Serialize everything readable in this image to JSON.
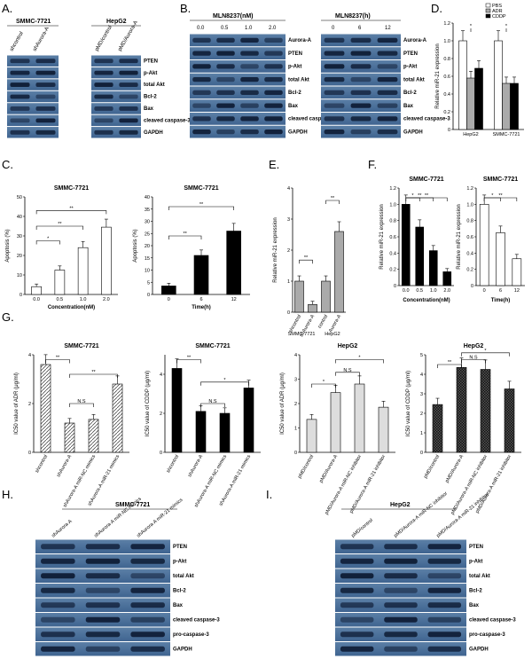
{
  "panel_labels": {
    "A": "A.",
    "B": "B.",
    "C": "C.",
    "D": "D.",
    "E": "E.",
    "F": "F.",
    "G": "G.",
    "H": "H.",
    "I": "I."
  },
  "panelA": {
    "cell_left": "SMMC-7721",
    "cell_right": "HepG2",
    "lanes_left": [
      "shcontrol",
      "shAurora-A"
    ],
    "lanes_right": [
      "pMD/control",
      "pMD/Aurora-A"
    ],
    "rows": [
      "PTEN",
      "p-Akt",
      "total Akt",
      "Bcl-2",
      "Bax",
      "cleaved caspase-3",
      "GAPDH"
    ]
  },
  "panelB": {
    "title_left": "MLN8237(nM)",
    "title_right": "MLN8237(h)",
    "doses": [
      "0.0",
      "0.5",
      "1.0",
      "2.0"
    ],
    "times": [
      "0",
      "6",
      "12"
    ],
    "rows": [
      "Aurora-A",
      "PTEN",
      "p-Akt",
      "total Akt",
      "Bcl-2",
      "Bax",
      "cleaved caspase-3",
      "GAPDH"
    ]
  },
  "panelH": {
    "title": "SMMC-7721",
    "lanes": [
      "shAurora-A",
      "shAurora-A miR-NC mimics",
      "shAurora-A miR-21 mimics"
    ],
    "rows": [
      "PTEN",
      "p-Akt",
      "total Akt",
      "Bcl-2",
      "Bax",
      "cleaved caspase-3",
      "pro-caspase-3",
      "GAPDH"
    ]
  },
  "panelI": {
    "title": "HepG2",
    "lanes": [
      "pMD/control",
      "pMD/Aurora-A miR-NC inhibitor",
      "pMD/Aurora-A miR-21 inhibitor"
    ],
    "rows": [
      "PTEN",
      "p-Akt",
      "total Akt",
      "Bcl-2",
      "Bax",
      "cleaved caspase-3",
      "pro-caspase-3",
      "GAPDH"
    ]
  },
  "sig": {
    "one": "*",
    "two": "**",
    "ns": "N.S"
  },
  "chart_data": [
    {
      "id": "D",
      "type": "bar",
      "ylabel": "Relative miR-21 expression",
      "ylim": [
        0,
        1.2
      ],
      "yticks": [
        "0",
        "0.2",
        "0.4",
        "0.6",
        "0.8",
        "1.0",
        "1.2"
      ],
      "categories": [
        "HepG2",
        "SMMC-7721"
      ],
      "series": [
        {
          "name": "PBS",
          "values": [
            1.0,
            1.0
          ]
        },
        {
          "name": "ADR",
          "values": [
            0.58,
            0.52
          ]
        },
        {
          "name": "CDDP",
          "values": [
            0.69,
            0.52
          ]
        }
      ]
    },
    {
      "id": "C1",
      "type": "bar",
      "title": "SMMC-7721",
      "xlabel": "Concentration(nM)",
      "ylabel": "Apoptosis (%)",
      "ylim": [
        0,
        50
      ],
      "yticks": [
        "0",
        "10",
        "20",
        "30",
        "40",
        "50"
      ],
      "categories": [
        "0.0",
        "0.5",
        "1.0",
        "2.0"
      ],
      "values": [
        4,
        12.5,
        24,
        34.5
      ]
    },
    {
      "id": "C2",
      "type": "bar",
      "title": "SMMC-7721",
      "xlabel": "Time(h)",
      "ylabel": "Apoptosis (%)",
      "ylim": [
        0,
        40
      ],
      "yticks": [
        "0",
        "5",
        "10",
        "15",
        "20",
        "25",
        "30",
        "35",
        "40"
      ],
      "categories": [
        "0",
        "6",
        "12"
      ],
      "values": [
        3.5,
        16,
        26
      ]
    },
    {
      "id": "E",
      "type": "bar",
      "ylabel": "Relative miR-21 expression",
      "ylim": [
        0,
        4
      ],
      "yticks": [
        "0",
        "1",
        "2",
        "3",
        "4"
      ],
      "categories": [
        "shcontrol",
        "shAurora-A",
        "control",
        "Aurora-A"
      ],
      "groups": [
        "SMMC-7721",
        "HepG2"
      ],
      "values": [
        1.0,
        0.25,
        1.0,
        2.6
      ]
    },
    {
      "id": "F1",
      "type": "bar",
      "title": "SMMC-7721",
      "xlabel": "Concentration(nM)",
      "ylabel": "Relative miR-21 expression",
      "ylim": [
        0,
        1.2
      ],
      "yticks": [
        "0",
        "0.2",
        "0.4",
        "0.6",
        "0.8",
        "1.0",
        "1.2"
      ],
      "categories": [
        "0.0",
        "0.5",
        "1.0",
        "2.0"
      ],
      "values": [
        1.0,
        0.72,
        0.43,
        0.17
      ]
    },
    {
      "id": "F2",
      "type": "bar",
      "title": "SMMC-7721",
      "xlabel": "Time(h)",
      "ylabel": "Relative miR-21 expression",
      "ylim": [
        0,
        1.2
      ],
      "yticks": [
        "0",
        "0.2",
        "0.4",
        "0.6",
        "0.8",
        "1.0",
        "1.2"
      ],
      "categories": [
        "0",
        "6",
        "12"
      ],
      "values": [
        1.0,
        0.65,
        0.33
      ]
    },
    {
      "id": "G1",
      "type": "bar",
      "title": "SMMC-7721",
      "ylabel": "IC50 value of ADR (μg/ml)",
      "ylim": [
        0,
        4
      ],
      "yticks": [
        "0",
        "2",
        "4"
      ],
      "categories": [
        "shcontrol",
        "shAurora-A",
        "shAurora-A miR-NC mimics",
        "shAurora-A miR-21 mimics"
      ],
      "values": [
        3.6,
        1.2,
        1.35,
        2.8
      ]
    },
    {
      "id": "G2",
      "type": "bar",
      "title": "SMMC-7721",
      "ylabel": "IC50 value of CDDP (μg/ml)",
      "ylim": [
        0,
        5
      ],
      "yticks": [
        "0",
        "2",
        "4"
      ],
      "categories": [
        "shcontrol",
        "shAurora-A",
        "shAurora-A miR-NC mimics",
        "shAurora-A miR-21 mimics"
      ],
      "values": [
        4.3,
        2.1,
        2.0,
        3.3
      ]
    },
    {
      "id": "G3",
      "type": "bar",
      "title": "HepG2",
      "ylabel": "IC50 value of ADR (μg/ml)",
      "ylim": [
        0,
        4
      ],
      "yticks": [
        "0",
        "1",
        "2",
        "3",
        "4"
      ],
      "categories": [
        "pMD/control",
        "pMD/Aurora-A",
        "pMD/Aurora-A miR-NC inhibitor",
        "pMD/Aurora-A miR-21 inhibitor"
      ],
      "values": [
        1.35,
        2.45,
        2.8,
        1.85
      ]
    },
    {
      "id": "G4",
      "type": "bar",
      "title": "HepG2",
      "ylabel": "IC50 value of CDDP (μg/ml)",
      "ylim": [
        0,
        5
      ],
      "yticks": [
        "0",
        "1",
        "2",
        "3",
        "4",
        "5"
      ],
      "categories": [
        "pMD/control",
        "pMD/Aurora-A",
        "pMD/Aurora-A miR-NC inhibitor",
        "pMD/Aurora-A miR-21 inhibitor"
      ],
      "values": [
        2.45,
        4.35,
        4.25,
        3.25
      ]
    }
  ]
}
